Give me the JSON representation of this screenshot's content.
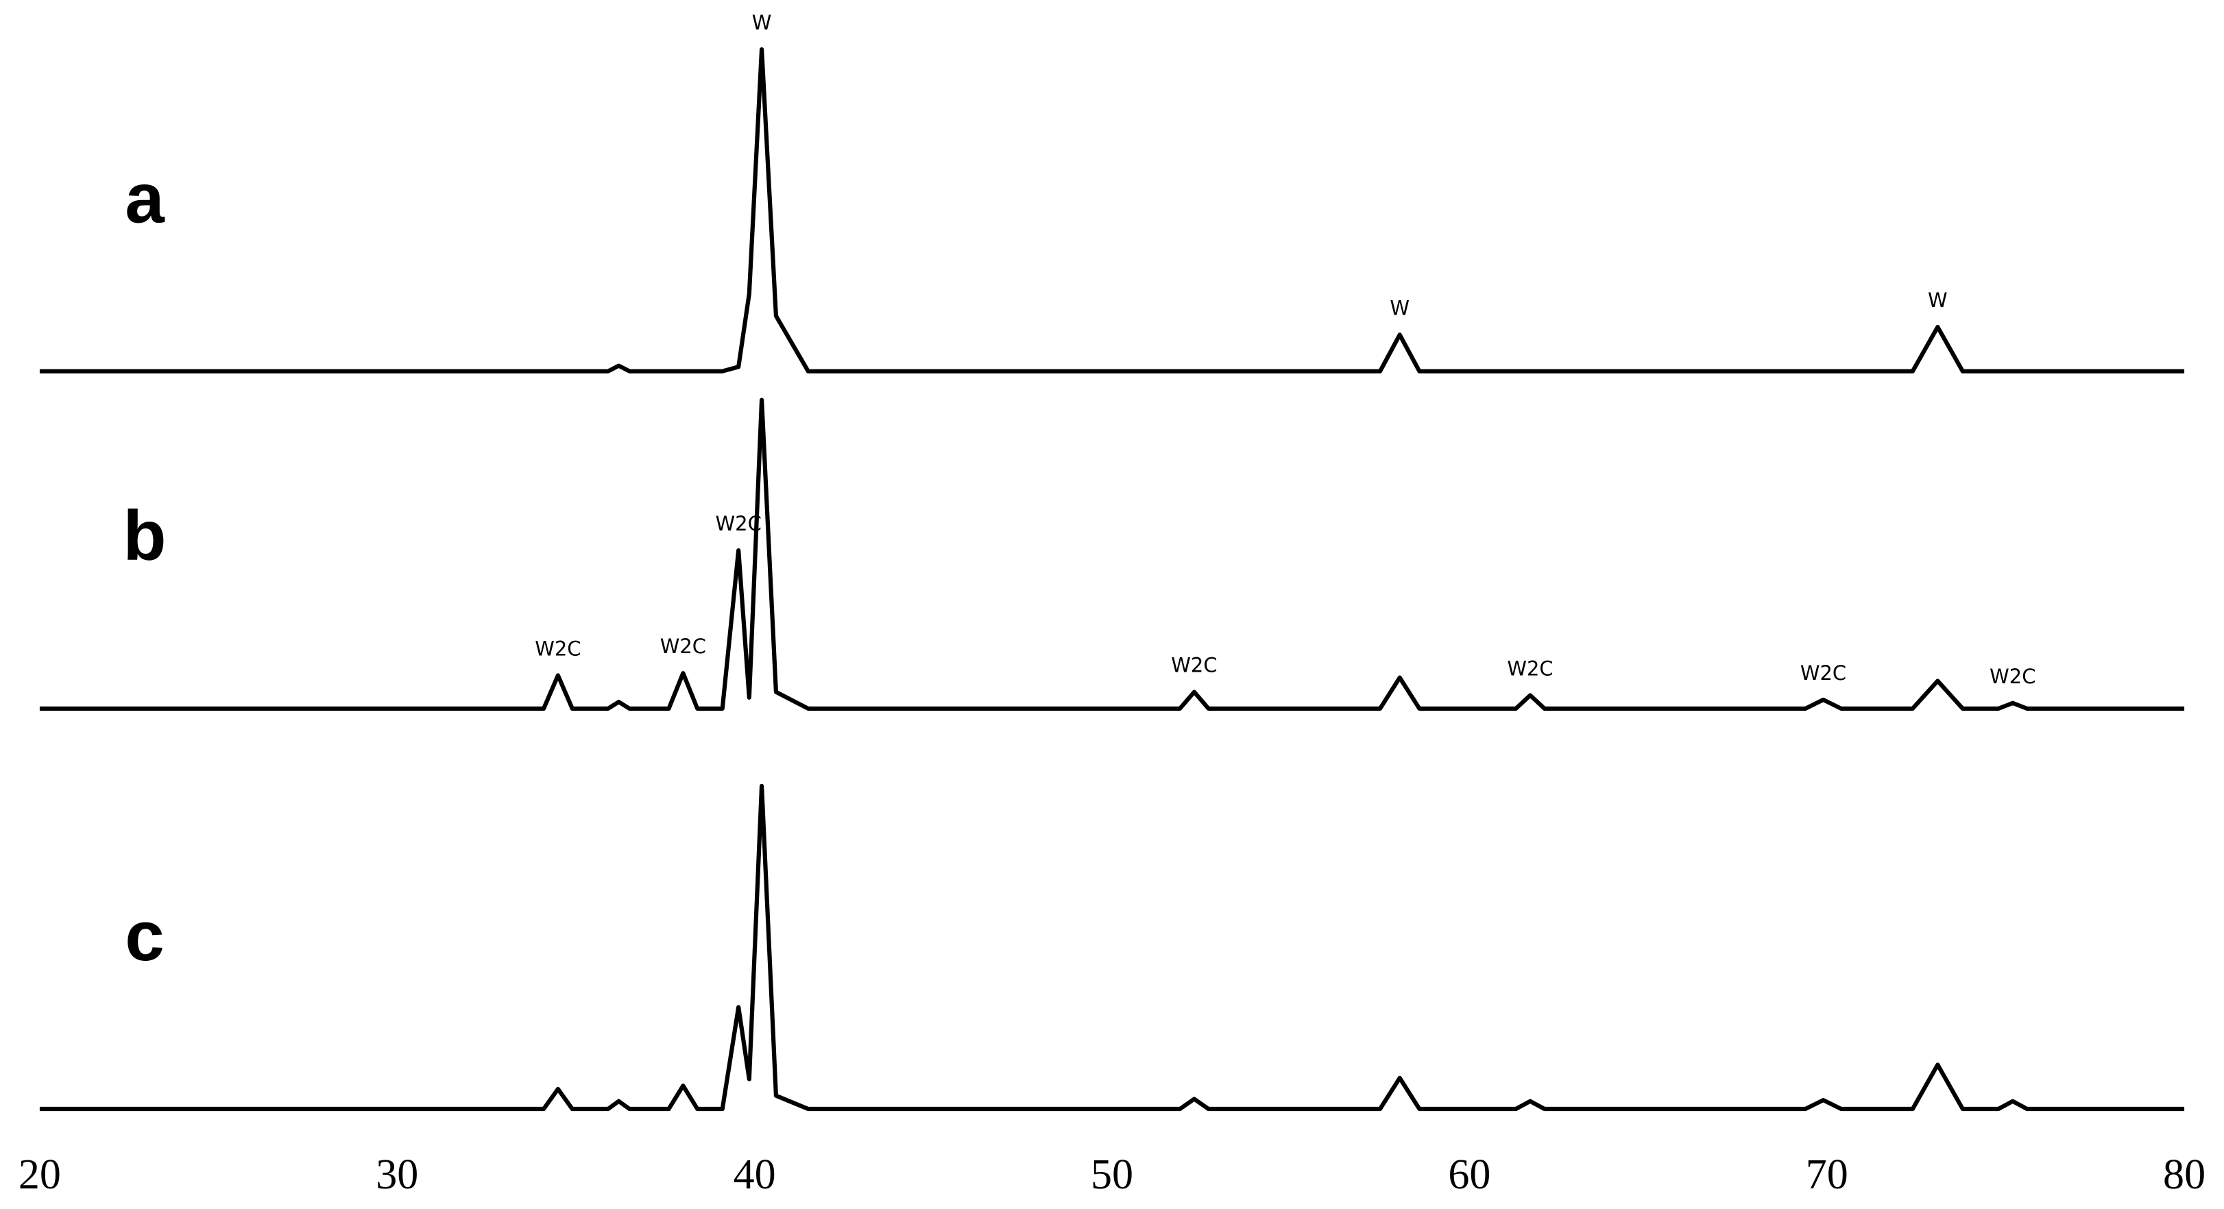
{
  "chart_data": {
    "type": "line",
    "x": [
      20,
      34.1,
      34.5,
      34.9,
      35.9,
      36.2,
      36.5,
      37.6,
      38.0,
      38.4,
      39.1,
      39.55,
      39.85,
      40.2,
      40.6,
      41.5,
      51.9,
      52.3,
      52.7,
      57.5,
      58.05,
      58.6,
      61.3,
      61.7,
      62.1,
      69.4,
      69.9,
      70.4,
      72.4,
      73.1,
      73.8,
      74.8,
      75.2,
      75.6,
      80
    ],
    "series": [
      {
        "name": "a",
        "color": "#000000",
        "values": [
          69,
          69,
          69,
          69,
          69,
          69.5,
          69,
          69,
          69,
          69,
          69,
          69.4,
          76,
          98.1,
          74,
          69,
          69,
          69,
          69,
          69,
          72.3,
          69,
          69,
          69,
          69,
          69,
          69,
          69,
          69,
          73,
          69,
          69,
          69,
          69,
          69
        ],
        "peak_labels": [
          {
            "label": "W",
            "x": 40.2
          },
          {
            "label": "W",
            "x": 58.05
          },
          {
            "label": "W",
            "x": 73.1
          }
        ]
      },
      {
        "name": "b",
        "color": "#000000",
        "values": [
          38.5,
          38.5,
          41.5,
          38.5,
          38.5,
          39.1,
          38.5,
          38.5,
          41.7,
          38.5,
          38.5,
          52.8,
          39.5,
          66.4,
          40,
          38.5,
          38.5,
          40,
          38.5,
          38.5,
          41.3,
          38.5,
          38.5,
          39.7,
          38.5,
          38.5,
          39.3,
          38.5,
          38.5,
          41,
          38.5,
          38.5,
          39,
          38.5,
          38.5
        ],
        "peak_labels": [
          {
            "label": "W2C",
            "x": 34.5
          },
          {
            "label": "W2C",
            "x": 38.0
          },
          {
            "label": "W2C",
            "x": 39.55
          },
          {
            "label": "W2C",
            "x": 52.3
          },
          {
            "label": "W2C",
            "x": 61.7
          },
          {
            "label": "W2C",
            "x": 69.9
          },
          {
            "label": "W2C",
            "x": 75.2
          }
        ]
      },
      {
        "name": "c",
        "color": "#000000",
        "values": [
          2.3,
          2.3,
          4.1,
          2.3,
          2.3,
          3,
          2.3,
          2.3,
          4.4,
          2.3,
          2.3,
          11.5,
          5,
          31.5,
          3.5,
          2.3,
          2.3,
          3.2,
          2.3,
          2.3,
          5.1,
          2.3,
          2.3,
          3,
          2.3,
          2.3,
          3.1,
          2.3,
          2.3,
          6.3,
          2.3,
          2.3,
          3,
          2.3,
          2.3
        ],
        "peak_labels": []
      }
    ],
    "xlim": [
      20,
      80
    ],
    "xticks": [
      20,
      30,
      40,
      50,
      60,
      70,
      80
    ],
    "ylim": [
      0,
      100
    ]
  }
}
